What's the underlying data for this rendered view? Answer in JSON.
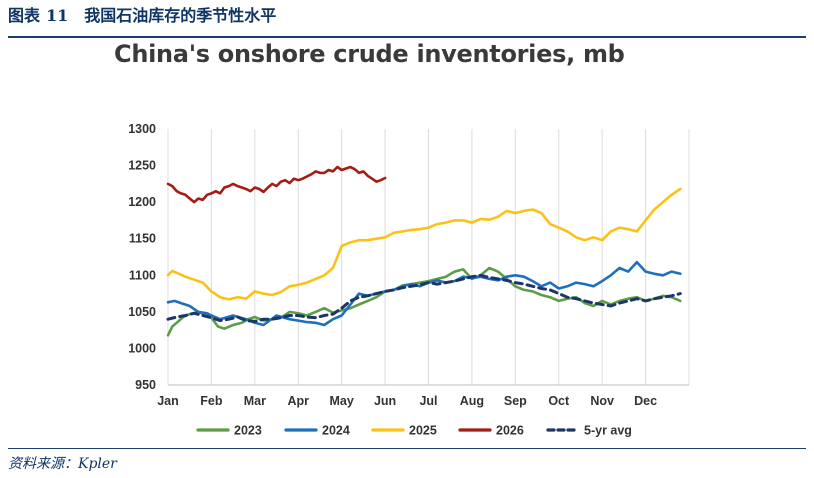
{
  "figure": {
    "label": "图表",
    "number": "11",
    "caption": "我国石油库存的季节性水平"
  },
  "source": "资料来源：Kpler",
  "chart_data": {
    "type": "line",
    "title": "China's onshore crude inventories, mb",
    "xlabel": "",
    "ylabel": "",
    "categories": [
      "Jan",
      "Feb",
      "Mar",
      "Apr",
      "May",
      "Jun",
      "Jul",
      "Aug",
      "Sep",
      "Oct",
      "Nov",
      "Dec"
    ],
    "ylim": [
      950,
      1300
    ],
    "yticks": [
      950,
      1000,
      1050,
      1100,
      1150,
      1200,
      1250,
      1300
    ],
    "grid": "vertical",
    "legend": "bottom",
    "colors": {
      "2023": "#5b9e45",
      "2024": "#1f6fbf",
      "2025": "#fbc116",
      "2026": "#a61b14",
      "5-yr avg": "#1c3665"
    },
    "series": [
      {
        "name": "2023",
        "style": "solid",
        "x": [
          0,
          0.1,
          0.2,
          0.35,
          0.5,
          0.7,
          0.85,
          1,
          1.15,
          1.3,
          1.5,
          1.7,
          1.85,
          2,
          2.2,
          2.4,
          2.6,
          2.8,
          3,
          3.2,
          3.4,
          3.6,
          3.8,
          4,
          4.2,
          4.4,
          4.6,
          4.8,
          5,
          5.2,
          5.4,
          5.6,
          5.8,
          6,
          6.2,
          6.4,
          6.6,
          6.8,
          7,
          7.2,
          7.4,
          7.6,
          7.8,
          8,
          8.2,
          8.4,
          8.6,
          8.8,
          9,
          9.2,
          9.4,
          9.6,
          9.8,
          10,
          10.2,
          10.4,
          10.6,
          10.8,
          11,
          11.2,
          11.4,
          11.6,
          11.8
        ],
        "values": [
          1018,
          1030,
          1035,
          1043,
          1047,
          1050,
          1046,
          1042,
          1030,
          1027,
          1032,
          1035,
          1040,
          1043,
          1038,
          1040,
          1042,
          1050,
          1048,
          1045,
          1050,
          1055,
          1049,
          1052,
          1055,
          1060,
          1065,
          1070,
          1078,
          1080,
          1086,
          1088,
          1090,
          1092,
          1095,
          1098,
          1105,
          1108,
          1095,
          1100,
          1110,
          1105,
          1095,
          1085,
          1080,
          1078,
          1073,
          1070,
          1065,
          1068,
          1070,
          1062,
          1058,
          1065,
          1060,
          1065,
          1068,
          1070,
          1065,
          1068,
          1072,
          1070,
          1065
        ]
      },
      {
        "name": "2024",
        "style": "solid",
        "x": [
          0,
          0.15,
          0.3,
          0.5,
          0.7,
          0.9,
          1,
          1.2,
          1.5,
          1.8,
          2,
          2.2,
          2.5,
          2.8,
          3,
          3.2,
          3.4,
          3.6,
          3.8,
          4,
          4.2,
          4.4,
          4.6,
          4.8,
          5,
          5.2,
          5.4,
          5.6,
          5.8,
          6,
          6.2,
          6.4,
          6.6,
          6.8,
          7,
          7.2,
          7.4,
          7.6,
          7.8,
          8,
          8.2,
          8.4,
          8.6,
          8.8,
          9,
          9.2,
          9.4,
          9.6,
          9.8,
          10,
          10.2,
          10.4,
          10.6,
          10.8,
          11,
          11.2,
          11.4,
          11.6,
          11.8
        ],
        "values": [
          1063,
          1065,
          1062,
          1058,
          1050,
          1048,
          1045,
          1040,
          1045,
          1040,
          1035,
          1032,
          1045,
          1040,
          1038,
          1036,
          1035,
          1032,
          1040,
          1045,
          1060,
          1075,
          1072,
          1075,
          1078,
          1080,
          1085,
          1088,
          1085,
          1090,
          1093,
          1090,
          1092,
          1098,
          1096,
          1098,
          1095,
          1093,
          1098,
          1100,
          1098,
          1092,
          1085,
          1090,
          1082,
          1085,
          1090,
          1088,
          1085,
          1092,
          1100,
          1110,
          1105,
          1118,
          1105,
          1102,
          1100,
          1105,
          1102
        ]
      },
      {
        "name": "2025",
        "style": "solid",
        "x": [
          0,
          0.1,
          0.25,
          0.4,
          0.6,
          0.8,
          1,
          1.2,
          1.4,
          1.6,
          1.8,
          2,
          2.2,
          2.4,
          2.6,
          2.8,
          3,
          3.2,
          3.4,
          3.6,
          3.8,
          4,
          4.2,
          4.4,
          4.6,
          4.8,
          5,
          5.2,
          5.4,
          5.6,
          5.8,
          6,
          6.2,
          6.4,
          6.6,
          6.8,
          7,
          7.2,
          7.4,
          7.6,
          7.8,
          8,
          8.2,
          8.4,
          8.6,
          8.8,
          9,
          9.2,
          9.4,
          9.6,
          9.8,
          10,
          10.2,
          10.4,
          10.6,
          10.8,
          11,
          11.2,
          11.4,
          11.6,
          11.8
        ],
        "values": [
          1100,
          1106,
          1102,
          1098,
          1094,
          1090,
          1078,
          1070,
          1067,
          1070,
          1068,
          1078,
          1075,
          1073,
          1077,
          1085,
          1087,
          1090,
          1095,
          1100,
          1110,
          1140,
          1145,
          1148,
          1148,
          1150,
          1152,
          1158,
          1160,
          1162,
          1163,
          1165,
          1170,
          1172,
          1175,
          1175,
          1172,
          1177,
          1176,
          1180,
          1188,
          1185,
          1188,
          1190,
          1185,
          1170,
          1165,
          1160,
          1152,
          1148,
          1152,
          1148,
          1160,
          1165,
          1163,
          1160,
          1175,
          1190,
          1200,
          1210,
          1218
        ]
      },
      {
        "name": "2026",
        "style": "solid",
        "x": [
          0,
          0.1,
          0.2,
          0.3,
          0.4,
          0.5,
          0.6,
          0.7,
          0.8,
          0.9,
          1,
          1.1,
          1.2,
          1.3,
          1.4,
          1.5,
          1.6,
          1.7,
          1.8,
          1.9,
          2,
          2.1,
          2.2,
          2.3,
          2.4,
          2.5,
          2.6,
          2.7,
          2.8,
          2.9,
          3,
          3.1,
          3.2,
          3.3,
          3.4,
          3.5,
          3.6,
          3.7,
          3.8,
          3.9,
          4,
          4.1,
          4.2,
          4.3,
          4.4,
          4.5,
          4.6,
          4.7,
          4.8,
          4.9,
          5
        ],
        "values": [
          1225,
          1222,
          1215,
          1212,
          1210,
          1205,
          1200,
          1205,
          1203,
          1210,
          1212,
          1215,
          1212,
          1220,
          1222,
          1225,
          1222,
          1220,
          1218,
          1215,
          1220,
          1218,
          1214,
          1220,
          1225,
          1222,
          1228,
          1230,
          1226,
          1232,
          1230,
          1232,
          1235,
          1238,
          1242,
          1240,
          1240,
          1244,
          1242,
          1248,
          1244,
          1246,
          1248,
          1245,
          1240,
          1242,
          1236,
          1232,
          1228,
          1230,
          1233
        ]
      },
      {
        "name": "5-yr avg",
        "style": "dashed",
        "x": [
          0,
          0.2,
          0.4,
          0.6,
          0.8,
          1,
          1.2,
          1.4,
          1.6,
          1.8,
          2,
          2.2,
          2.4,
          2.6,
          2.8,
          3,
          3.2,
          3.4,
          3.6,
          3.8,
          4,
          4.2,
          4.4,
          4.6,
          4.8,
          5,
          5.2,
          5.4,
          5.6,
          5.8,
          6,
          6.2,
          6.4,
          6.6,
          6.8,
          7,
          7.2,
          7.4,
          7.6,
          7.8,
          8,
          8.2,
          8.4,
          8.6,
          8.8,
          9,
          9.2,
          9.4,
          9.6,
          9.8,
          10,
          10.2,
          10.4,
          10.6,
          10.8,
          11,
          11.2,
          11.4,
          11.6,
          11.8
        ],
        "values": [
          1040,
          1043,
          1045,
          1048,
          1045,
          1042,
          1038,
          1040,
          1043,
          1038,
          1037,
          1040,
          1040,
          1042,
          1045,
          1045,
          1043,
          1042,
          1045,
          1047,
          1055,
          1065,
          1070,
          1072,
          1075,
          1078,
          1080,
          1083,
          1085,
          1087,
          1090,
          1088,
          1090,
          1092,
          1095,
          1098,
          1100,
          1097,
          1095,
          1093,
          1090,
          1088,
          1085,
          1082,
          1080,
          1075,
          1070,
          1068,
          1065,
          1062,
          1060,
          1058,
          1062,
          1065,
          1068,
          1065,
          1068,
          1070,
          1072,
          1075
        ]
      }
    ]
  }
}
